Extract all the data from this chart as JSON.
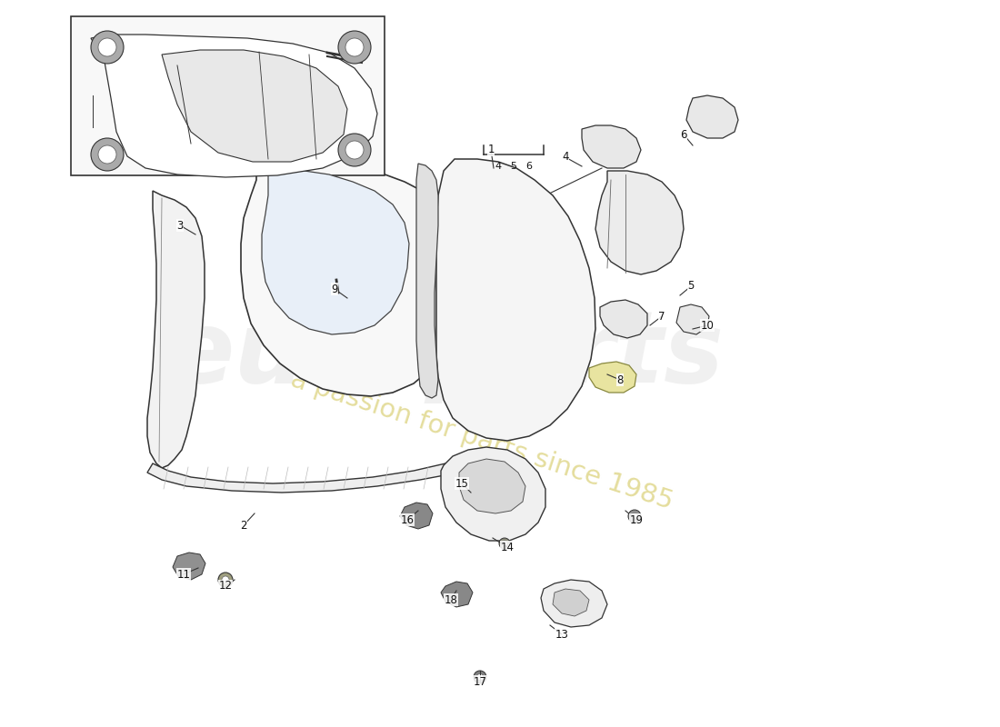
{
  "background_color": "#ffffff",
  "line_color": "#333333",
  "watermark1": "europarts",
  "watermark2": "a passion for parts since 1985",
  "fig_width": 11.0,
  "fig_height": 8.0,
  "dpi": 100,
  "part_leaders": {
    "1": [
      540,
      165,
      543,
      185
    ],
    "2": [
      268,
      578,
      280,
      565
    ],
    "3": [
      198,
      248,
      215,
      258
    ],
    "4": [
      622,
      173,
      640,
      183
    ],
    "5": [
      760,
      315,
      748,
      325
    ],
    "6": [
      752,
      148,
      762,
      160
    ],
    "7": [
      728,
      348,
      715,
      358
    ],
    "8": [
      682,
      418,
      668,
      412
    ],
    "9": [
      368,
      318,
      382,
      328
    ],
    "10": [
      778,
      358,
      762,
      362
    ],
    "11": [
      202,
      632,
      218,
      625
    ],
    "12": [
      248,
      645,
      258,
      638
    ],
    "13": [
      618,
      698,
      605,
      688
    ],
    "14": [
      558,
      602,
      542,
      592
    ],
    "15": [
      508,
      532,
      518,
      542
    ],
    "16": [
      448,
      572,
      460,
      562
    ],
    "17": [
      528,
      750,
      528,
      738
    ],
    "18": [
      496,
      660,
      502,
      650
    ],
    "19": [
      700,
      572,
      688,
      562
    ]
  }
}
